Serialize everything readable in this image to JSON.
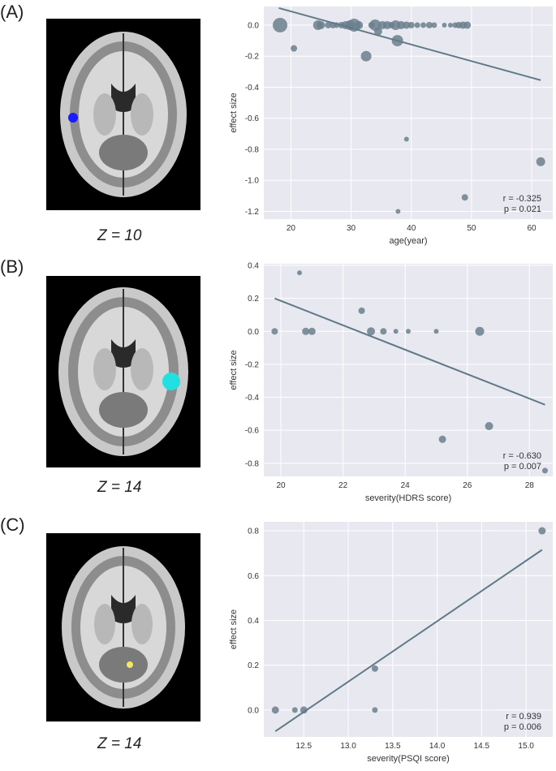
{
  "panels": [
    {
      "label": "(A)",
      "z_label": "Z = 10",
      "blob_color": "#1a1aff"
    },
    {
      "label": "(B)",
      "z_label": "Z = 14",
      "blob_color": "#22e0e0"
    },
    {
      "label": "(C)",
      "z_label": "Z = 14",
      "blob_color": "#f5e56b"
    }
  ],
  "colors": {
    "point": "#6a7f8c",
    "line": "#5f7a86",
    "plot_bg": "#e8e8f1",
    "grid": "#ffffff"
  },
  "chart_data": [
    {
      "type": "scatter",
      "xlabel": "age(year)",
      "ylabel": "effect size",
      "xlim": [
        15.5,
        63.5
      ],
      "ylim": [
        -1.25,
        0.12
      ],
      "xticks": [
        20,
        30,
        40,
        50,
        60
      ],
      "yticks": [
        0.0,
        -0.2,
        -0.4,
        -0.6,
        -0.8,
        -1.0,
        -1.2
      ],
      "grid": true,
      "stats": {
        "r": "r = -0.325",
        "p": "p = 0.021"
      },
      "fit_line": [
        [
          18,
          0.11
        ],
        [
          61.5,
          -0.355
        ]
      ],
      "points": [
        {
          "x": 18.2,
          "y": 0.0,
          "s": 9
        },
        {
          "x": 20.5,
          "y": -0.15,
          "s": 4
        },
        {
          "x": 24.5,
          "y": 0.0,
          "s": 6
        },
        {
          "x": 25.0,
          "y": 0.0,
          "s": 5
        },
        {
          "x": 26.2,
          "y": 0.0,
          "s": 4
        },
        {
          "x": 27.0,
          "y": 0.0,
          "s": 4
        },
        {
          "x": 27.6,
          "y": 0.0,
          "s": 3.5
        },
        {
          "x": 28.4,
          "y": 0.0,
          "s": 4
        },
        {
          "x": 29.1,
          "y": 0.0,
          "s": 5
        },
        {
          "x": 29.8,
          "y": 0.0,
          "s": 6
        },
        {
          "x": 30.5,
          "y": 0.0,
          "s": 8
        },
        {
          "x": 31.3,
          "y": 0.0,
          "s": 5
        },
        {
          "x": 32.5,
          "y": -0.2,
          "s": 6.5
        },
        {
          "x": 33.4,
          "y": 0.0,
          "s": 4
        },
        {
          "x": 34.0,
          "y": 0.0,
          "s": 7
        },
        {
          "x": 34.5,
          "y": -0.04,
          "s": 5
        },
        {
          "x": 35.2,
          "y": 0.0,
          "s": 5
        },
        {
          "x": 36.0,
          "y": 0.0,
          "s": 5
        },
        {
          "x": 36.7,
          "y": 0.0,
          "s": 4
        },
        {
          "x": 37.4,
          "y": 0.0,
          "s": 6
        },
        {
          "x": 37.7,
          "y": -0.1,
          "s": 7
        },
        {
          "x": 38.3,
          "y": 0.0,
          "s": 5
        },
        {
          "x": 37.8,
          "y": -1.2,
          "s": 3
        },
        {
          "x": 39.2,
          "y": -0.735,
          "s": 3
        },
        {
          "x": 39.2,
          "y": 0.0,
          "s": 4.5
        },
        {
          "x": 40.0,
          "y": 0.0,
          "s": 4
        },
        {
          "x": 41.0,
          "y": 0.0,
          "s": 3.5
        },
        {
          "x": 42.0,
          "y": 0.0,
          "s": 3.5
        },
        {
          "x": 43.0,
          "y": 0.0,
          "s": 4
        },
        {
          "x": 43.8,
          "y": 0.0,
          "s": 3.5
        },
        {
          "x": 45.5,
          "y": 0.0,
          "s": 3
        },
        {
          "x": 46.5,
          "y": 0.0,
          "s": 3
        },
        {
          "x": 47.3,
          "y": 0.0,
          "s": 3.5
        },
        {
          "x": 47.9,
          "y": 0.0,
          "s": 4
        },
        {
          "x": 48.6,
          "y": 0.0,
          "s": 4.5
        },
        {
          "x": 48.9,
          "y": -1.11,
          "s": 4
        },
        {
          "x": 49.3,
          "y": 0.0,
          "s": 4.5
        },
        {
          "x": 61.5,
          "y": -0.88,
          "s": 5.5
        }
      ]
    },
    {
      "type": "scatter",
      "xlabel": "severity(HDRS score)",
      "ylabel": "effect size",
      "xlim": [
        19.45,
        28.75
      ],
      "ylim": [
        -0.88,
        0.41
      ],
      "xticks": [
        20,
        22,
        24,
        26,
        28
      ],
      "yticks": [
        0.4,
        0.2,
        0.0,
        -0.2,
        -0.4,
        -0.6,
        -0.8
      ],
      "grid": true,
      "stats": {
        "r": "r = -0.630",
        "p": "p = 0.007"
      },
      "fit_line": [
        [
          19.8,
          0.2
        ],
        [
          28.5,
          -0.445
        ]
      ],
      "points": [
        {
          "x": 19.8,
          "y": 0.0,
          "s": 4
        },
        {
          "x": 20.6,
          "y": 0.355,
          "s": 3
        },
        {
          "x": 20.8,
          "y": 0.0,
          "s": 4.5
        },
        {
          "x": 21.0,
          "y": 0.0,
          "s": 4.5
        },
        {
          "x": 22.6,
          "y": 0.125,
          "s": 4
        },
        {
          "x": 22.9,
          "y": 0.0,
          "s": 5
        },
        {
          "x": 23.3,
          "y": 0.0,
          "s": 4
        },
        {
          "x": 23.7,
          "y": 0.0,
          "s": 3
        },
        {
          "x": 24.1,
          "y": 0.0,
          "s": 3
        },
        {
          "x": 25.0,
          "y": 0.0,
          "s": 3
        },
        {
          "x": 25.2,
          "y": -0.655,
          "s": 4.5
        },
        {
          "x": 26.4,
          "y": 0.0,
          "s": 5.5
        },
        {
          "x": 26.7,
          "y": -0.575,
          "s": 5
        },
        {
          "x": 28.5,
          "y": -0.845,
          "s": 3.5
        }
      ]
    },
    {
      "type": "scatter",
      "xlabel": "severity(PSQI score)",
      "ylabel": "effect size",
      "xlim": [
        12.05,
        15.3
      ],
      "ylim": [
        -0.12,
        0.84
      ],
      "xticks": [
        12.5,
        13.0,
        13.5,
        14.0,
        14.5,
        15.0
      ],
      "yticks": [
        0.8,
        0.6,
        0.4,
        0.2,
        0.0
      ],
      "grid": true,
      "stats": {
        "r": "r = 0.939",
        "p": "p = 0.006"
      },
      "fit_line": [
        [
          12.18,
          -0.095
        ],
        [
          15.18,
          0.715
        ]
      ],
      "points": [
        {
          "x": 12.18,
          "y": 0.0,
          "s": 4.5
        },
        {
          "x": 12.4,
          "y": 0.0,
          "s": 3.5
        },
        {
          "x": 12.5,
          "y": 0.0,
          "s": 4.5
        },
        {
          "x": 13.3,
          "y": 0.185,
          "s": 4
        },
        {
          "x": 13.3,
          "y": 0.0,
          "s": 3.5
        },
        {
          "x": 15.18,
          "y": 0.8,
          "s": 4.5
        }
      ]
    }
  ]
}
